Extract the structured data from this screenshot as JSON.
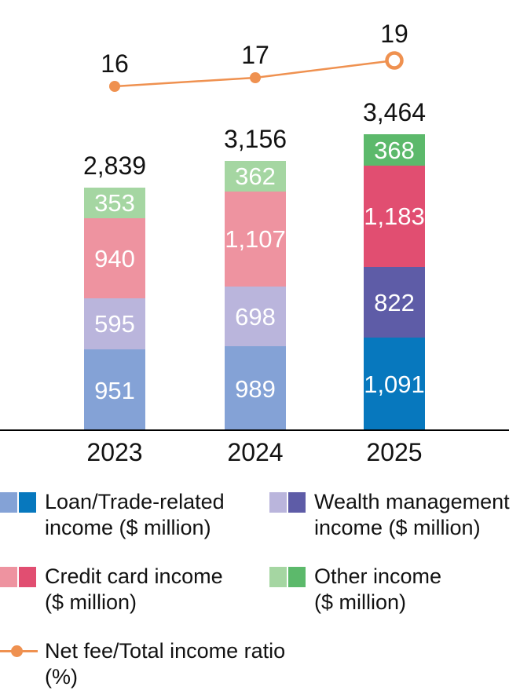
{
  "chart_data": {
    "type": "bar",
    "subtype": "stacked-bar-with-line-combo",
    "categories": [
      "2023",
      "2024",
      "2025"
    ],
    "series": [
      {
        "name": "Loan/Trade-related income ($ million)",
        "values": [
          951,
          989,
          1091
        ]
      },
      {
        "name": "Wealth management income ($ million)",
        "values": [
          595,
          698,
          822
        ]
      },
      {
        "name": "Credit card income ($ million)",
        "values": [
          940,
          1107,
          1183
        ]
      },
      {
        "name": "Other income ($ million)",
        "values": [
          353,
          362,
          368
        ]
      }
    ],
    "totals": [
      2839,
      3156,
      3464
    ],
    "line_series": {
      "name": "Net fee/Total income ratio (%)",
      "values": [
        16,
        17,
        19
      ]
    },
    "title": "",
    "xlabel": "",
    "ylabel": "",
    "grid": false,
    "legend_position": "bottom",
    "notes": "2025 bars use dark color variants; 2023/2024 use light variants; last line point is an open circle marker"
  },
  "colors": {
    "series_light": [
      "#84A2D6",
      "#BAB5DC",
      "#EE93A0",
      "#A5D6A2"
    ],
    "series_dark": [
      "#0778BE",
      "#5E5CA7",
      "#E14E71",
      "#5CB96B"
    ],
    "line": "#EF9150",
    "text": "#121212",
    "segment_label": "#FFFFFF",
    "axis": "#000000"
  },
  "legend": {
    "items": [
      {
        "line1": "Loan/Trade-related",
        "line2": "income ($ million)",
        "light": "#84A2D6",
        "dark": "#0778BE"
      },
      {
        "line1": "Wealth management",
        "line2": "income ($ million)",
        "light": "#BAB5DC",
        "dark": "#5E5CA7"
      },
      {
        "line1": "Credit card income",
        "line2": "($ million)",
        "light": "#EE93A0",
        "dark": "#E14E71"
      },
      {
        "line1": "Other income",
        "line2": "($ million)",
        "light": "#A5D6A2",
        "dark": "#5CB96B"
      }
    ],
    "ratio": {
      "line1": "Net fee/Total income ratio",
      "line2": "(%)",
      "color": "#EF9150"
    }
  }
}
